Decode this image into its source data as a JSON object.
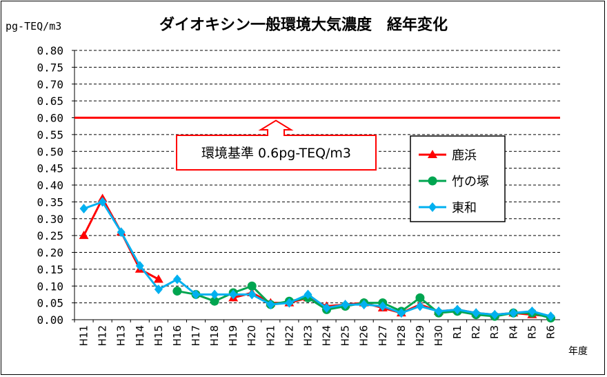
{
  "chart_data": {
    "type": "line",
    "title": "ダイオキシン一般環境大気濃度　経年変化",
    "ylabel": "pg-TEQ/m3",
    "xlabel": "年度",
    "ylim": [
      0,
      0.8
    ],
    "ytick_step": 0.05,
    "grid": true,
    "legend_position": "right",
    "categories": [
      "H11",
      "H12",
      "H13",
      "H14",
      "H15",
      "H16",
      "H17",
      "H18",
      "H19",
      "H20",
      "H21",
      "H22",
      "H23",
      "H24",
      "H25",
      "H26",
      "H27",
      "H28",
      "H29",
      "H30",
      "R1",
      "R2",
      "R3",
      "R4",
      "R5",
      "R6"
    ],
    "series": [
      {
        "name": "鹿浜",
        "color": "#ff0000",
        "marker": "triangle",
        "values": [
          0.25,
          0.36,
          0.26,
          0.15,
          0.12,
          null,
          null,
          null,
          0.065,
          0.08,
          0.05,
          0.05,
          0.065,
          0.04,
          0.045,
          0.05,
          0.035,
          0.02,
          0.045,
          0.025,
          0.03,
          0.02,
          0.015,
          0.02,
          0.015,
          0.01
        ]
      },
      {
        "name": "竹の塚",
        "color": "#00a550",
        "marker": "circle",
        "values": [
          null,
          null,
          null,
          null,
          null,
          0.085,
          0.075,
          0.055,
          0.08,
          0.1,
          0.045,
          0.055,
          0.065,
          0.03,
          0.04,
          0.05,
          0.05,
          0.025,
          0.065,
          0.02,
          0.025,
          0.015,
          0.01,
          0.02,
          0.02,
          0.005
        ]
      },
      {
        "name": "東和",
        "color": "#00b0f0",
        "marker": "diamond",
        "values": [
          0.33,
          0.35,
          0.26,
          0.16,
          0.09,
          0.12,
          0.075,
          0.075,
          0.075,
          0.075,
          0.045,
          0.05,
          0.075,
          0.035,
          0.045,
          0.045,
          0.04,
          0.02,
          0.04,
          0.025,
          0.03,
          0.02,
          0.015,
          0.02,
          0.025,
          0.01
        ]
      }
    ],
    "reference_line": {
      "value": 0.6,
      "color": "#ff0000"
    },
    "annotation": "環境基準  0.6pg-TEQ/m3"
  }
}
